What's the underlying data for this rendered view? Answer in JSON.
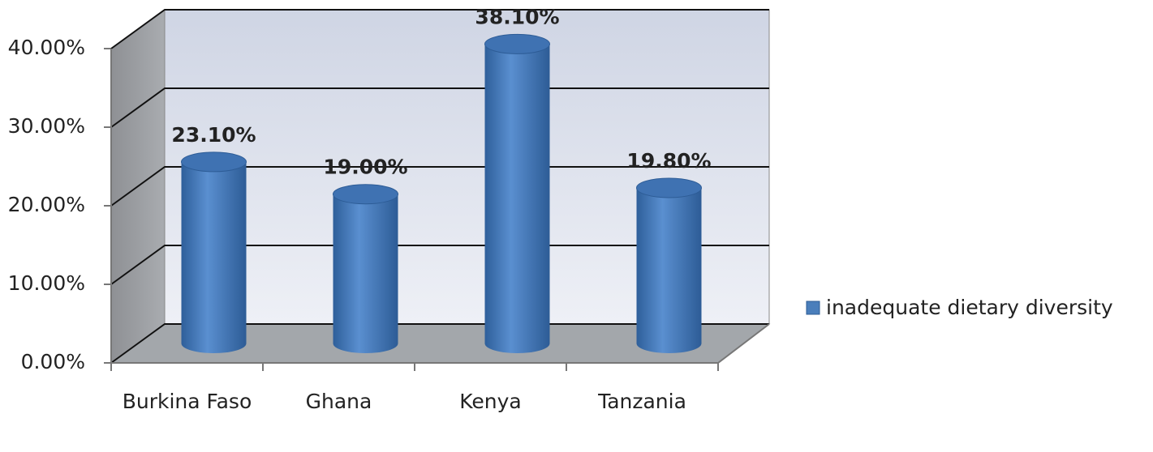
{
  "chart_data": {
    "type": "bar3d",
    "categories": [
      "Burkina Faso",
      "Ghana",
      "Kenya",
      "Tanzania"
    ],
    "series": [
      {
        "name": "inadequate dietary diversity",
        "color": "#4a7ebb",
        "values": [
          23.1,
          19.0,
          38.1,
          19.8
        ],
        "value_labels": [
          "23.10%",
          "19.00%",
          "38.10%",
          "19.80%"
        ]
      }
    ],
    "ylim": [
      0,
      40
    ],
    "yticks": [
      {
        "value": 0,
        "label": "0.00%"
      },
      {
        "value": 10,
        "label": "10.00%"
      },
      {
        "value": 20,
        "label": "20.00%"
      },
      {
        "value": 30,
        "label": "30.00%"
      },
      {
        "value": 40,
        "label": "40.00%"
      }
    ],
    "grid": true,
    "legend": "right"
  }
}
